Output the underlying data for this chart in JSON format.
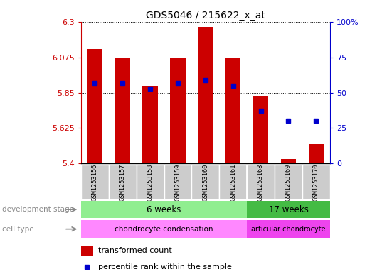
{
  "title": "GDS5046 / 215622_x_at",
  "samples": [
    "GSM1253156",
    "GSM1253157",
    "GSM1253158",
    "GSM1253159",
    "GSM1253160",
    "GSM1253161",
    "GSM1253168",
    "GSM1253169",
    "GSM1253170"
  ],
  "transformed_count": [
    6.13,
    6.075,
    5.895,
    6.075,
    6.27,
    6.075,
    5.83,
    5.425,
    5.52
  ],
  "percentile_rank": [
    57,
    57,
    53,
    57,
    59,
    55,
    37,
    30,
    30
  ],
  "y_min": 5.4,
  "y_max": 6.3,
  "y_ticks": [
    5.4,
    5.625,
    5.85,
    6.075,
    6.3
  ],
  "y_tick_labels": [
    "5.4",
    "5.625",
    "5.85",
    "6.075",
    "6.3"
  ],
  "right_y_ticks": [
    0,
    25,
    50,
    75,
    100
  ],
  "right_y_tick_labels": [
    "0",
    "25",
    "50",
    "75",
    "100%"
  ],
  "bar_color": "#cc0000",
  "dot_color": "#0000cc",
  "bg_color": "#ffffff",
  "left_axis_color": "#cc0000",
  "right_axis_color": "#0000cc",
  "dev_color_6": "#90ee90",
  "dev_color_17": "#44bb44",
  "cell_color_chondro": "#ff88ff",
  "cell_color_articular": "#ee44ee",
  "sample_bg_color": "#cccccc",
  "legend_items": [
    "transformed count",
    "percentile rank within the sample"
  ],
  "row_label_dev": "development stage",
  "row_label_cell": "cell type",
  "dev_label_6": "6 weeks",
  "dev_label_17": "17 weeks",
  "cell_label_6": "chondrocyte condensation",
  "cell_label_17": "articular chondrocyte",
  "n_group1": 6,
  "n_group2": 3
}
